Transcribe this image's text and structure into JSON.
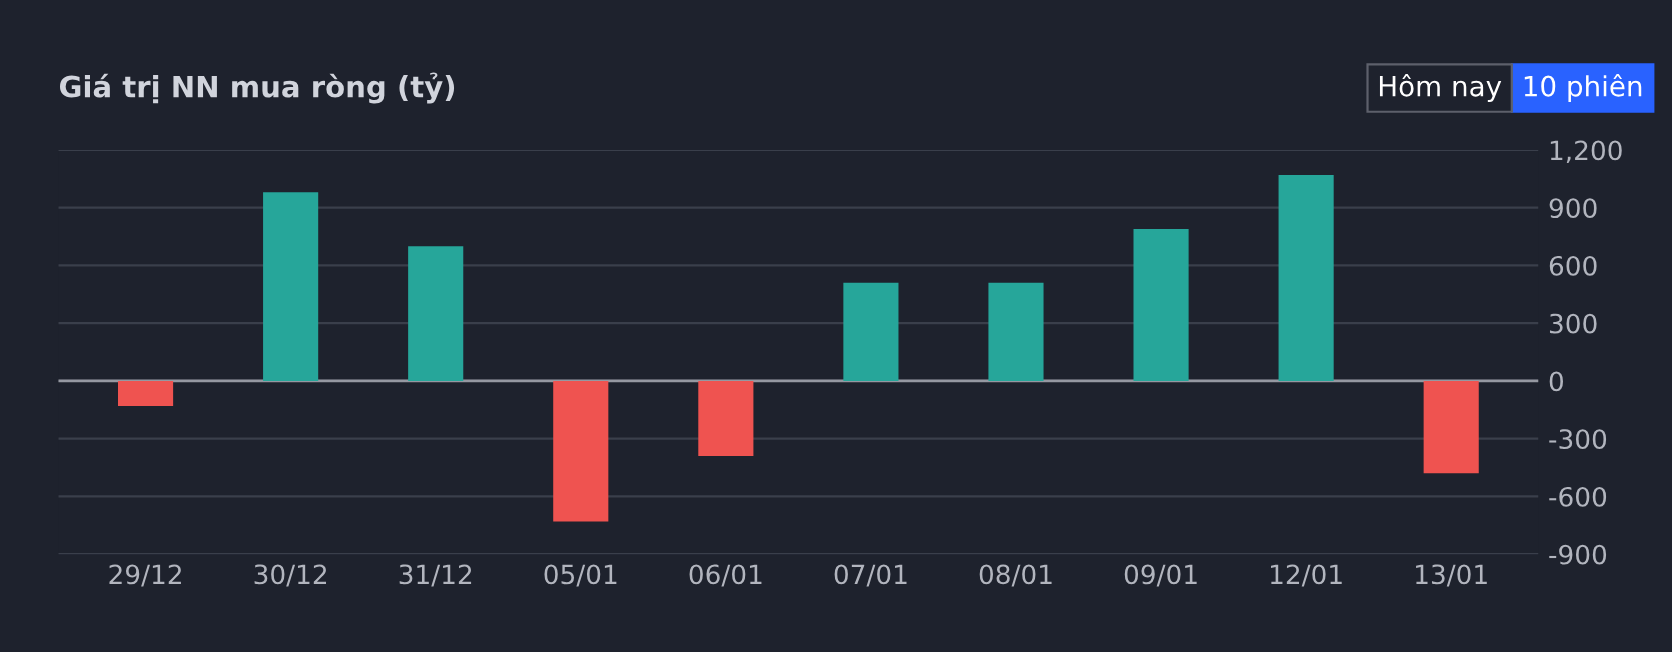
{
  "chart_data": {
    "type": "bar",
    "title": "Giá trị NN mua ròng (tỷ)",
    "categories": [
      "29/12",
      "30/12",
      "31/12",
      "05/01",
      "06/01",
      "07/01",
      "08/01",
      "09/01",
      "12/01",
      "13/01"
    ],
    "values": [
      -130,
      980,
      700,
      -730,
      -390,
      510,
      510,
      790,
      1070,
      -480
    ],
    "colors": [
      "#ef5350",
      "#26a69a",
      "#26a69a",
      "#ef5350",
      "#ef5350",
      "#26a69a",
      "#26a69a",
      "#26a69a",
      "#26a69a",
      "#ef5350"
    ],
    "ylim": [
      -900,
      1200
    ],
    "yticks": [
      {
        "value": 1200,
        "label": "1,200"
      },
      900,
      600,
      300,
      0,
      -300,
      -600,
      -900
    ],
    "grid": "y",
    "annotations": [
      "Hôm nay",
      "10 phiên"
    ]
  }
}
